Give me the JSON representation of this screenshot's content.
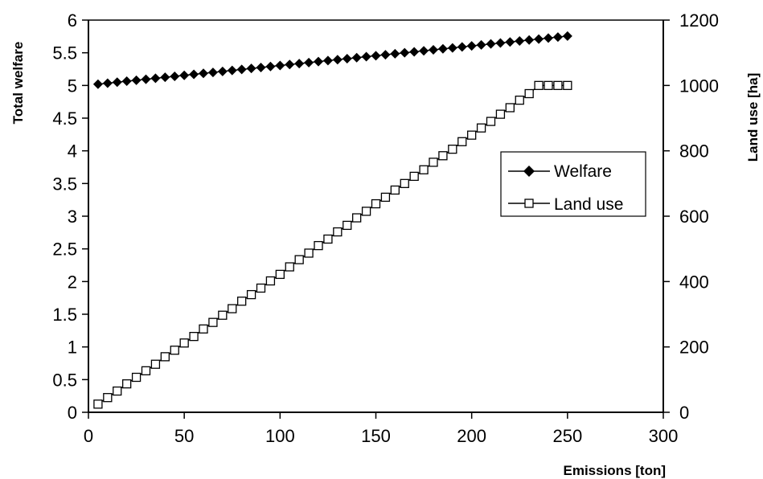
{
  "chart_data": {
    "type": "line",
    "xlabel": "Emissions [ton]",
    "ylabel_left": "Total welfare",
    "ylabel_right": "Land use [ha]",
    "xlim": [
      0,
      300
    ],
    "ylim_left": [
      0,
      6
    ],
    "ylim_right": [
      0,
      1200
    ],
    "x_ticks": [
      "0",
      "50",
      "100",
      "150",
      "200",
      "250",
      "300"
    ],
    "y_left_ticks": [
      "0",
      "0.5",
      "1",
      "1.5",
      "2",
      "2.5",
      "3",
      "3.5",
      "4",
      "4.5",
      "5",
      "5.5",
      "6"
    ],
    "y_right_ticks": [
      "0",
      "200",
      "400",
      "600",
      "800",
      "1000",
      "1200"
    ],
    "grid": false,
    "legend_position": "right",
    "series": [
      {
        "name": "Welfare",
        "axis": "left",
        "marker": "diamond-filled",
        "x": [
          5,
          10,
          15,
          20,
          25,
          30,
          35,
          40,
          45,
          50,
          55,
          60,
          65,
          70,
          75,
          80,
          85,
          90,
          95,
          100,
          105,
          110,
          115,
          120,
          125,
          130,
          135,
          140,
          145,
          150,
          155,
          160,
          165,
          170,
          175,
          180,
          185,
          190,
          195,
          200,
          205,
          210,
          215,
          220,
          225,
          230,
          235,
          240,
          245,
          250
        ],
        "values": [
          5.02,
          5.035,
          5.05,
          5.065,
          5.08,
          5.095,
          5.11,
          5.125,
          5.14,
          5.155,
          5.17,
          5.185,
          5.2,
          5.215,
          5.23,
          5.245,
          5.26,
          5.275,
          5.29,
          5.305,
          5.32,
          5.335,
          5.35,
          5.365,
          5.38,
          5.395,
          5.41,
          5.425,
          5.44,
          5.455,
          5.47,
          5.485,
          5.5,
          5.515,
          5.53,
          5.545,
          5.56,
          5.575,
          5.59,
          5.605,
          5.62,
          5.635,
          5.65,
          5.665,
          5.68,
          5.695,
          5.71,
          5.725,
          5.74,
          5.755
        ]
      },
      {
        "name": "Land use",
        "axis": "right",
        "marker": "square-open",
        "x": [
          5,
          10,
          15,
          20,
          25,
          30,
          35,
          40,
          45,
          50,
          55,
          60,
          65,
          70,
          75,
          80,
          85,
          90,
          95,
          100,
          105,
          110,
          115,
          120,
          125,
          130,
          135,
          140,
          145,
          150,
          155,
          160,
          165,
          170,
          175,
          180,
          185,
          190,
          195,
          200,
          205,
          210,
          215,
          220,
          225,
          230,
          235,
          240,
          245,
          250
        ],
        "values": [
          25,
          45,
          65,
          87,
          107,
          127,
          147,
          170,
          190,
          212,
          232,
          255,
          275,
          297,
          317,
          340,
          360,
          380,
          402,
          422,
          445,
          467,
          487,
          510,
          530,
          552,
          572,
          595,
          615,
          638,
          658,
          680,
          700,
          722,
          742,
          765,
          785,
          805,
          828,
          848,
          870,
          890,
          912,
          932,
          955,
          975,
          1000,
          1000,
          1000,
          1000
        ]
      }
    ]
  }
}
